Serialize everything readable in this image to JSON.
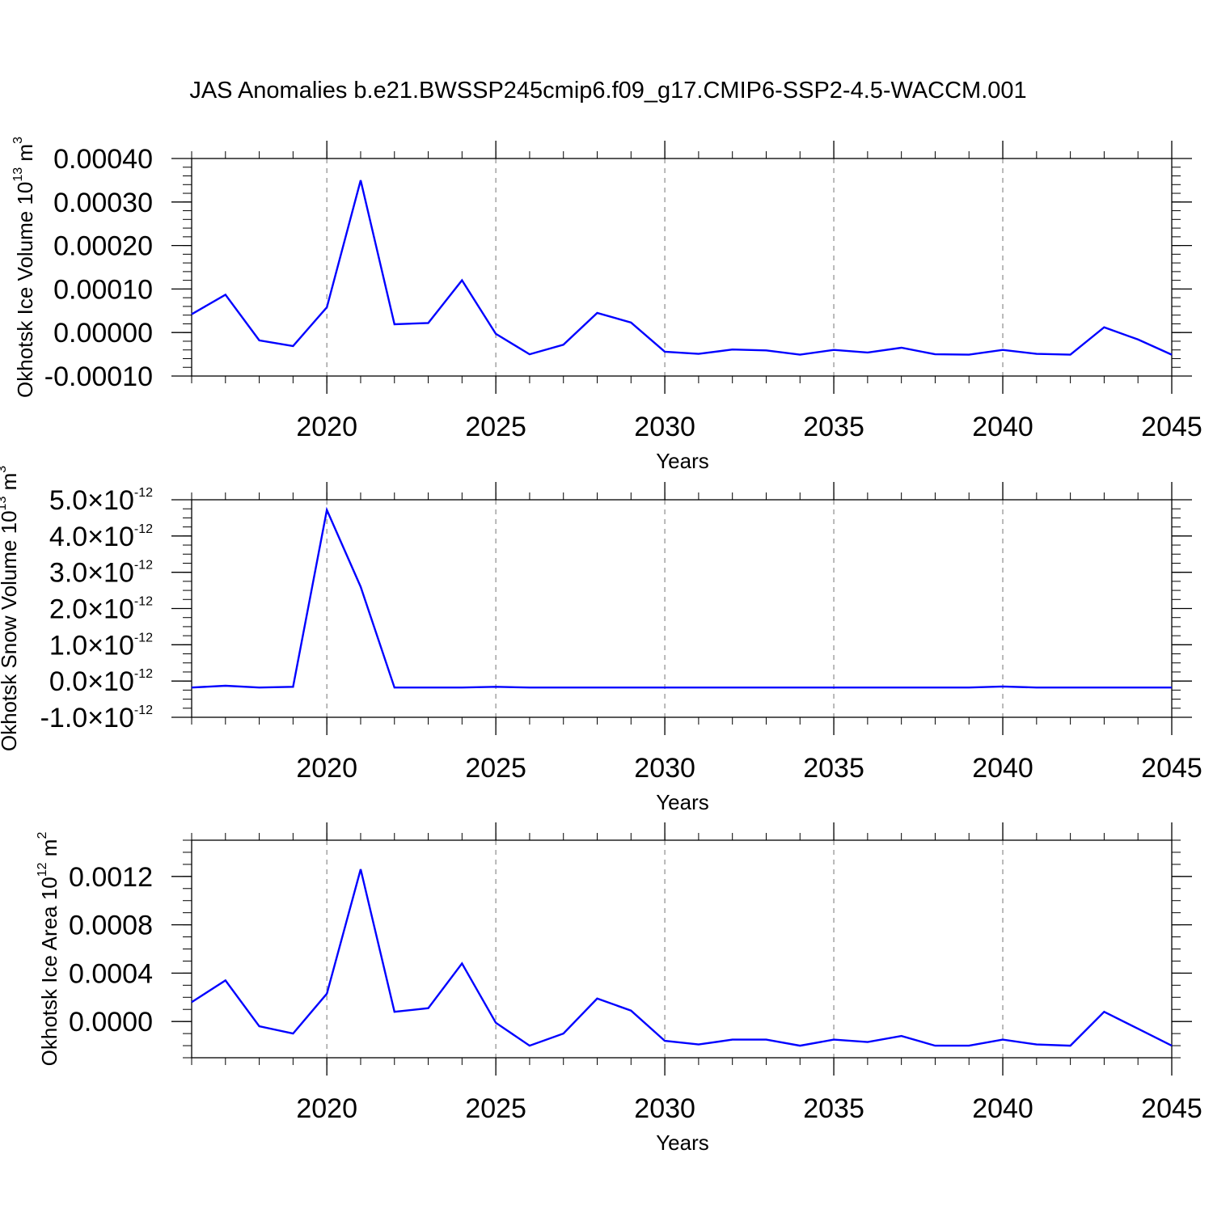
{
  "figure": {
    "title": "JAS Anomalies b.e21.BWSSP245cmip6.f09_g17.CMIP6-SSP2-4.5-WACCM.001"
  },
  "colors": {
    "line": "#0000ff",
    "axes": "#000000",
    "grid": "#8c8c8c"
  },
  "chart_data": [
    {
      "type": "line",
      "ylabel_main": "Okhotsk Ice Volume 10",
      "ylabel_exp": "13",
      "ylabel_unit": " m",
      "ylabel_unit_exp": "3",
      "xlabel": "Years",
      "xlim": [
        2016,
        2045
      ],
      "ylim": [
        -0.0001,
        0.0004
      ],
      "x_ticks": [
        2020,
        2025,
        2030,
        2035,
        2040,
        2045
      ],
      "y_ticks": [
        -0.0001,
        0.0,
        0.0001,
        0.0002,
        0.0003,
        0.0004
      ],
      "y_tick_labels": [
        "-0.00010",
        "0.00000",
        "0.00010",
        "0.00020",
        "0.00030",
        "0.00040"
      ],
      "grid": "vertical dashed at major x ticks",
      "x": [
        2016,
        2017,
        2018,
        2019,
        2020,
        2021,
        2022,
        2023,
        2024,
        2025,
        2026,
        2027,
        2028,
        2029,
        2030,
        2031,
        2032,
        2033,
        2034,
        2035,
        2036,
        2037,
        2038,
        2039,
        2040,
        2041,
        2042,
        2043,
        2044,
        2045
      ],
      "series": [
        {
          "values": [
            4.2e-05,
            8.7e-05,
            -1.8e-05,
            -3.1e-05,
            5.8e-05,
            0.00035,
            1.9e-05,
            2.2e-05,
            0.00012,
            -3e-06,
            -5e-05,
            -2.8e-05,
            4.5e-05,
            2.3e-05,
            -4.4e-05,
            -4.9e-05,
            -3.9e-05,
            -4.1e-05,
            -5.1e-05,
            -4e-05,
            -4.6e-05,
            -3.5e-05,
            -5e-05,
            -5.1e-05,
            -4e-05,
            -4.9e-05,
            -5.1e-05,
            1.2e-05,
            -1.6e-05,
            -5.1e-05
          ]
        }
      ]
    },
    {
      "type": "line",
      "ylabel_main": "Okhotsk Snow Volume 10",
      "ylabel_exp": "13",
      "ylabel_unit": " m",
      "ylabel_unit_exp": "3",
      "xlabel": "Years",
      "xlim": [
        2016,
        2045
      ],
      "ylim": [
        -1e-12,
        5e-12
      ],
      "x_ticks": [
        2020,
        2025,
        2030,
        2035,
        2040,
        2045
      ],
      "y_ticks": [
        -1e-12,
        0.0,
        1e-12,
        2e-12,
        3e-12,
        4e-12,
        5e-12
      ],
      "y_tick_mantissa": [
        "-1.0",
        "0.0",
        "1.0",
        "2.0",
        "3.0",
        "4.0",
        "5.0"
      ],
      "y_tick_times": "×10",
      "y_tick_exp": "-12",
      "grid": "vertical dashed at major x ticks",
      "x": [
        2016,
        2017,
        2018,
        2019,
        2020,
        2021,
        2022,
        2023,
        2024,
        2025,
        2026,
        2027,
        2028,
        2029,
        2030,
        2031,
        2032,
        2033,
        2034,
        2035,
        2036,
        2037,
        2038,
        2039,
        2040,
        2041,
        2042,
        2043,
        2044,
        2045
      ],
      "series": [
        {
          "values": [
            -1.8e-13,
            -1.3e-13,
            -1.8e-13,
            -1.6e-13,
            4.72e-12,
            2.6e-12,
            -1.8e-13,
            -1.8e-13,
            -1.8e-13,
            -1.6e-13,
            -1.8e-13,
            -1.8e-13,
            -1.8e-13,
            -1.8e-13,
            -1.8e-13,
            -1.8e-13,
            -1.8e-13,
            -1.8e-13,
            -1.8e-13,
            -1.8e-13,
            -1.8e-13,
            -1.8e-13,
            -1.8e-13,
            -1.8e-13,
            -1.5e-13,
            -1.8e-13,
            -1.8e-13,
            -1.8e-13,
            -1.8e-13,
            -1.8e-13
          ]
        }
      ]
    },
    {
      "type": "line",
      "ylabel_main": "Okhotsk Ice Area 10",
      "ylabel_exp": "12",
      "ylabel_unit": " m",
      "ylabel_unit_exp": "2",
      "xlabel": "Years",
      "xlim": [
        2016,
        2045
      ],
      "ylim": [
        -0.0003,
        0.0015
      ],
      "x_ticks": [
        2020,
        2025,
        2030,
        2035,
        2040,
        2045
      ],
      "y_ticks": [
        0.0,
        0.0004,
        0.0008,
        0.0012
      ],
      "y_tick_labels": [
        "0.0000",
        "0.0004",
        "0.0008",
        "0.0012"
      ],
      "grid": "vertical dashed at major x ticks",
      "x": [
        2016,
        2017,
        2018,
        2019,
        2020,
        2021,
        2022,
        2023,
        2024,
        2025,
        2026,
        2027,
        2028,
        2029,
        2030,
        2031,
        2032,
        2033,
        2034,
        2035,
        2036,
        2037,
        2038,
        2039,
        2040,
        2041,
        2042,
        2043,
        2044,
        2045
      ],
      "series": [
        {
          "values": [
            0.00016,
            0.00034,
            -4e-05,
            -0.0001,
            0.00023,
            0.00126,
            8e-05,
            0.00011,
            0.00048,
            -1e-05,
            -0.0002,
            -0.0001,
            0.00019,
            9e-05,
            -0.00016,
            -0.00019,
            -0.00015,
            -0.00015,
            -0.0002,
            -0.00015,
            -0.00017,
            -0.00012,
            -0.0002,
            -0.0002,
            -0.00015,
            -0.00019,
            -0.0002,
            8e-05,
            -6e-05,
            -0.0002
          ]
        }
      ]
    }
  ]
}
